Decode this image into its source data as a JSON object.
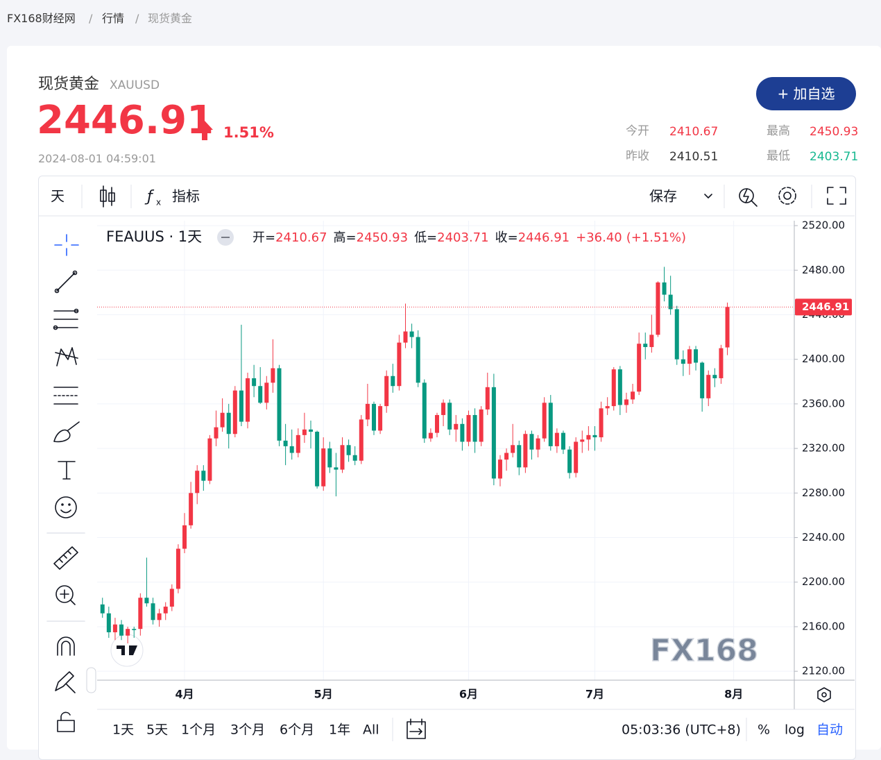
{
  "breadcrumb": [
    "FX168财经网",
    "行情",
    "现货黄金"
  ],
  "header": {
    "name": "现货黄金",
    "symbol": "XAUUSD",
    "price": "2446.91",
    "change_pct": "1.51%",
    "time": "2024-08-01 04:59:01",
    "button": "+ 加自选",
    "stats": [
      {
        "label": "今开",
        "value": "2410.67"
      },
      {
        "label": "最高",
        "value": "2450.93"
      },
      {
        "label": "昨收",
        "value": "2410.51"
      },
      {
        "label": "最低",
        "value": "2403.71"
      }
    ]
  },
  "toolbar": {
    "interval": "天",
    "indicators": "指标",
    "save": "保存"
  },
  "chart_data": {
    "type": "candlestick",
    "title": "FEAUUS · 1天",
    "legend": {
      "open": "开=",
      "high": "高=",
      "low": "低=",
      "close": "收=",
      "change": "+36.40",
      "change_pct": "(+1.51%)"
    },
    "colors": {
      "up": "#f23645",
      "down": "#089981"
    },
    "watermark": "FX168",
    "open": [
      2180,
      2172,
      2155,
      2162,
      2152,
      2158,
      2158,
      2186,
      2181,
      2166,
      2172,
      2178,
      2194,
      2230,
      2251,
      2280,
      2300,
      2291,
      2329,
      2339,
      2352,
      2333,
      2372,
      2344,
      2383,
      2376,
      2361,
      2379,
      2392,
      2327,
      2322,
      2316,
      2332,
      2337,
      2335,
      2286,
      2320,
      2303,
      2301,
      2323,
      2314,
      2309,
      2346,
      2360,
      2336,
      2358,
      2385,
      2376,
      2415,
      2425,
      2420,
      2379,
      2329,
      2334,
      2350,
      2361,
      2337,
      2342,
      2326,
      2350,
      2326,
      2355,
      2375,
      2293,
      2310,
      2316,
      2323,
      2303,
      2333,
      2319,
      2329,
      2361,
      2322,
      2334,
      2319,
      2298,
      2326,
      2328,
      2332,
      2330,
      2356,
      2358,
      2391,
      2359,
      2364,
      2371,
      2414,
      2411,
      2422,
      2469,
      2458,
      2445,
      2400,
      2396,
      2409,
      2397,
      2365,
      2386,
      2383,
      2410.67
    ],
    "high": [
      2186,
      2178,
      2168,
      2166,
      2160,
      2160,
      2190,
      2222,
      2186,
      2176,
      2182,
      2198,
      2234,
      2262,
      2290,
      2305,
      2305,
      2332,
      2354,
      2365,
      2360,
      2376,
      2431,
      2388,
      2395,
      2393,
      2385,
      2418,
      2395,
      2342,
      2337,
      2338,
      2352,
      2345,
      2336,
      2330,
      2326,
      2316,
      2330,
      2328,
      2322,
      2350,
      2378,
      2362,
      2360,
      2390,
      2396,
      2422,
      2450,
      2432,
      2426,
      2382,
      2338,
      2352,
      2364,
      2364,
      2350,
      2347,
      2354,
      2356,
      2358,
      2388,
      2387,
      2314,
      2320,
      2342,
      2327,
      2336,
      2336,
      2332,
      2366,
      2368,
      2338,
      2336,
      2322,
      2330,
      2336,
      2340,
      2340,
      2362,
      2366,
      2393,
      2394,
      2370,
      2378,
      2424,
      2424,
      2440,
      2470,
      2483,
      2475,
      2448,
      2408,
      2412,
      2412,
      2398,
      2390,
      2392,
      2413,
      2450.93
    ],
    "low": [
      2168,
      2150,
      2148,
      2148,
      2145,
      2150,
      2152,
      2178,
      2162,
      2160,
      2166,
      2174,
      2190,
      2226,
      2248,
      2270,
      2282,
      2288,
      2322,
      2335,
      2320,
      2330,
      2340,
      2338,
      2366,
      2360,
      2355,
      2370,
      2322,
      2305,
      2310,
      2312,
      2325,
      2320,
      2284,
      2282,
      2298,
      2277,
      2298,
      2308,
      2305,
      2306,
      2340,
      2332,
      2333,
      2352,
      2370,
      2372,
      2410,
      2410,
      2375,
      2325,
      2326,
      2330,
      2340,
      2332,
      2326,
      2318,
      2322,
      2316,
      2322,
      2350,
      2287,
      2286,
      2300,
      2312,
      2296,
      2298,
      2310,
      2312,
      2326,
      2318,
      2316,
      2315,
      2293,
      2294,
      2316,
      2318,
      2318,
      2326,
      2350,
      2354,
      2350,
      2352,
      2360,
      2368,
      2400,
      2406,
      2420,
      2452,
      2440,
      2395,
      2385,
      2386,
      2390,
      2353,
      2358,
      2375,
      2378,
      2403.71
    ],
    "close": [
      2172,
      2155,
      2162,
      2152,
      2158,
      2157,
      2186,
      2181,
      2166,
      2172,
      2178,
      2194,
      2230,
      2251,
      2280,
      2300,
      2291,
      2329,
      2339,
      2352,
      2333,
      2372,
      2344,
      2383,
      2376,
      2361,
      2379,
      2392,
      2327,
      2322,
      2316,
      2332,
      2337,
      2335,
      2286,
      2320,
      2303,
      2301,
      2323,
      2314,
      2309,
      2346,
      2360,
      2336,
      2358,
      2385,
      2376,
      2415,
      2425,
      2420,
      2379,
      2329,
      2334,
      2350,
      2361,
      2337,
      2342,
      2326,
      2350,
      2326,
      2355,
      2375,
      2293,
      2310,
      2316,
      2323,
      2303,
      2333,
      2319,
      2329,
      2361,
      2322,
      2334,
      2319,
      2298,
      2326,
      2328,
      2332,
      2330,
      2356,
      2358,
      2391,
      2359,
      2364,
      2371,
      2414,
      2411,
      2422,
      2469,
      2458,
      2445,
      2400,
      2396,
      2409,
      2397,
      2365,
      2386,
      2383,
      2410,
      2446.91
    ],
    "xlim": [
      -0.85,
      109.6
    ],
    "xticks": [
      {
        "value": 13,
        "label": "4月"
      },
      {
        "value": 35,
        "label": "5月"
      },
      {
        "value": 58,
        "label": "6月"
      },
      {
        "value": 78,
        "label": "7月"
      },
      {
        "value": 100,
        "label": "8月"
      }
    ],
    "ylim": [
      2112,
      2524.4
    ],
    "yticks": [
      {
        "value": 2120,
        "label": "2120.00"
      },
      {
        "value": 2160,
        "label": "2160.00"
      },
      {
        "value": 2200,
        "label": "2200.00"
      },
      {
        "value": 2240,
        "label": "2240.00"
      },
      {
        "value": 2280,
        "label": "2280.00"
      },
      {
        "value": 2320,
        "label": "2320.00"
      },
      {
        "value": 2360,
        "label": "2360.00"
      },
      {
        "value": 2400,
        "label": "2400.00"
      },
      {
        "value": 2440,
        "label": "2440.00"
      },
      {
        "value": 2480,
        "label": "2480.00"
      },
      {
        "value": 2520,
        "label": "2520.00"
      }
    ],
    "grid": true
  },
  "footer": {
    "ranges": [
      "1天",
      "5天",
      "1个月",
      "3个月",
      "6个月",
      "1年",
      "All"
    ],
    "clock": "05:03:36 (UTC+8)",
    "percent": "%",
    "log": "log",
    "auto": "自动"
  }
}
